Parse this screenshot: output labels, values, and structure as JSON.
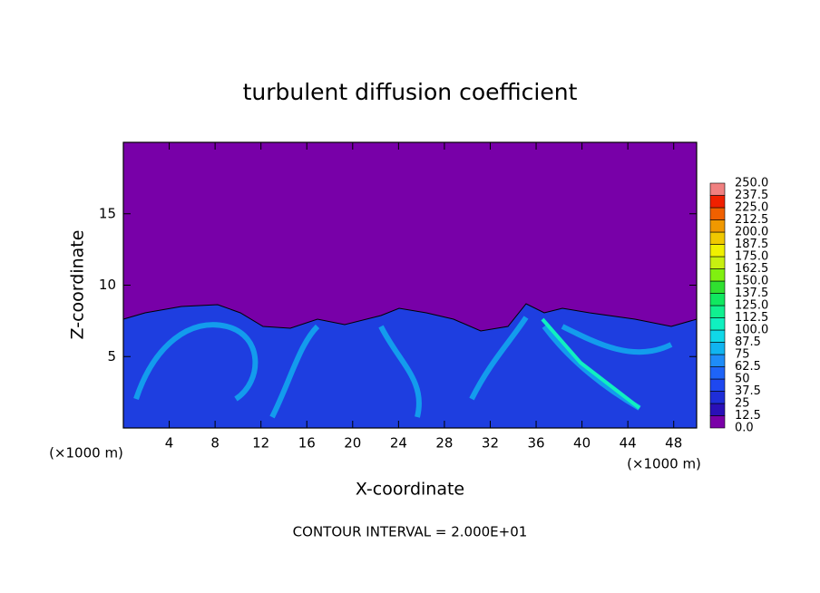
{
  "chart_data": {
    "type": "contour",
    "title": "turbulent diffusion coefficient",
    "x_label": "X-coordinate",
    "y_label": "Z-coordinate",
    "x_unit": "(×1000 m)",
    "annotation": "CONTOUR INTERVAL = 2.000E+01",
    "xlim": [
      0,
      50
    ],
    "ylim": [
      0,
      20
    ],
    "xticks": [
      4,
      8,
      12,
      16,
      20,
      24,
      28,
      32,
      36,
      40,
      44,
      48
    ],
    "yticks": [
      5,
      10,
      15
    ],
    "colorbar": {
      "levels": [
        {
          "value": 0,
          "label": "0.0"
        },
        12.5,
        25,
        37.5,
        50,
        62.5,
        75,
        87.5,
        {
          "value": 100,
          "label": "100.0"
        },
        112.5,
        {
          "value": 125,
          "label": "125.0"
        },
        137.5,
        {
          "value": 150,
          "label": "150.0"
        },
        162.5,
        {
          "value": 175,
          "label": "175.0"
        },
        187.5,
        {
          "value": 200,
          "label": "200.0"
        },
        212.5,
        {
          "value": 225,
          "label": "225.0"
        },
        237.5,
        {
          "value": 250,
          "label": "250.0"
        }
      ],
      "colors": [
        "#7a00a8",
        "#2a10b8",
        "#1e2ed8",
        "#1e48f0",
        "#1e64f8",
        "#1e8cf8",
        "#10b4f0",
        "#10d8e8",
        "#10f0c0",
        "#10f090",
        "#10e860",
        "#30e030",
        "#80f010",
        "#c8f010",
        "#f0f000",
        "#f0c800",
        "#f09800",
        "#f06000",
        "#f02000",
        "#f08080"
      ]
    }
  }
}
